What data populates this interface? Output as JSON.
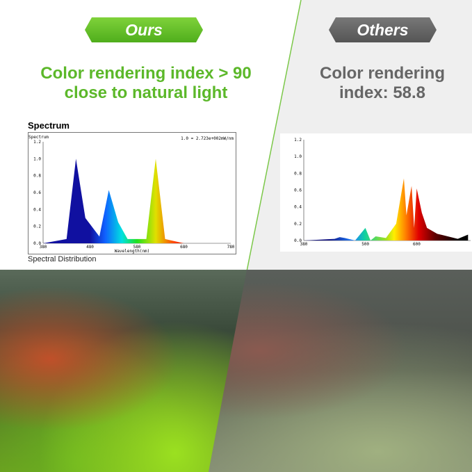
{
  "ours": {
    "badge": "Ours",
    "headline_line1": "Color rendering index > 90",
    "headline_line2": "close to natural light",
    "chart": {
      "title": "Spectrum",
      "caption": "Spectral Distribution",
      "ylabel": "Spectrum",
      "scale_note": "1.0 = 2.723e+002mW/nm",
      "xlabel": "Wavelength(nm)",
      "yticks": [
        "0.0",
        "0.2",
        "0.4",
        "0.6",
        "0.8",
        "1.0",
        "1.2"
      ],
      "xticks": [
        "380",
        "480",
        "580",
        "680",
        "780"
      ]
    }
  },
  "others": {
    "badge": "Others",
    "headline_line1": "Color rendering",
    "headline_line2": "index: 58.8",
    "chart": {
      "yticks": [
        "0.0",
        "0.2",
        "0.4",
        "0.6",
        "0.8",
        "1.0",
        "1.2"
      ],
      "xticks": [
        "380",
        "500",
        "600"
      ]
    }
  },
  "chart_data": [
    {
      "type": "area",
      "title": "Spectrum",
      "xlabel": "Wavelength(nm)",
      "ylabel": "Spectrum",
      "ylim": [
        0,
        1.2
      ],
      "x": [
        380,
        430,
        450,
        470,
        500,
        520,
        540,
        560,
        600,
        620,
        640,
        680,
        780
      ],
      "values": [
        0,
        0.05,
        1.0,
        0.3,
        0.08,
        0.63,
        0.25,
        0.05,
        0.05,
        1.0,
        0.05,
        0,
        0
      ]
    },
    {
      "type": "area",
      "ylim": [
        0,
        1.2
      ],
      "x": [
        380,
        440,
        450,
        460,
        480,
        500,
        510,
        520,
        540,
        560,
        575,
        580,
        590,
        595,
        600,
        610,
        620,
        640,
        680,
        700
      ],
      "values": [
        0,
        0.02,
        0.04,
        0.03,
        0.0,
        0.15,
        0.0,
        0.05,
        0.03,
        0.2,
        0.74,
        0.3,
        0.65,
        0.15,
        0.62,
        0.33,
        0.15,
        0.08,
        0.02,
        0.07
      ]
    }
  ]
}
